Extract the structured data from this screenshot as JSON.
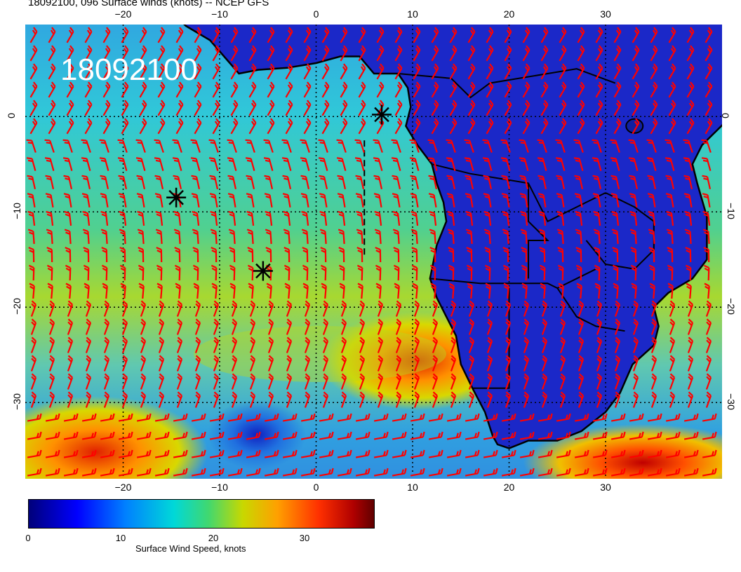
{
  "header": "18092100, 096 Surface winds (knots) -- NCEP GFS",
  "stamp": "18092100",
  "colorbar": {
    "label": "Surface Wind Speed, knots",
    "ticks": [
      "0",
      "10",
      "20",
      "30"
    ],
    "colors": [
      "#00007a",
      "#0000ff",
      "#0080ff",
      "#00d8d8",
      "#40d870",
      "#c8d800",
      "#ffa000",
      "#ff3000",
      "#b00000",
      "#600000"
    ]
  },
  "axes": {
    "lon_labels": [
      "-20",
      "-10",
      "0",
      "10",
      "20",
      "30"
    ],
    "lat_labels": [
      "0",
      "-10",
      "-20",
      "-30"
    ]
  },
  "markers": [
    {
      "name": "storm-marker-1",
      "lon": -14.5,
      "lat": -8.5
    },
    {
      "name": "storm-marker-2",
      "lon": -5.5,
      "lat": -16.2
    },
    {
      "name": "storm-marker-3",
      "lon": 6.8,
      "lat": 0.2
    }
  ],
  "colors": {
    "land": "#1b28c8",
    "ocean": "#28b8d8",
    "wind_barb": "#ff0000",
    "map_lines": "#000000"
  }
}
